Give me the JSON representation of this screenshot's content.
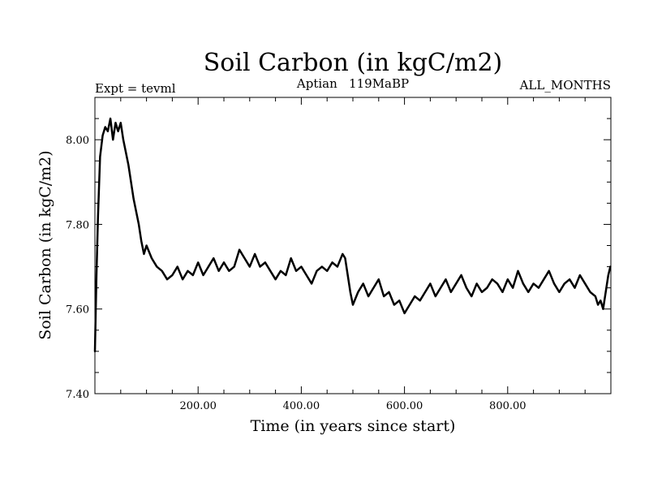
{
  "chart_data": {
    "type": "line",
    "title": "Soil Carbon (in kgC/m2)",
    "subtitle_left": "Expt = tevml",
    "subtitle_center": "Aptian   119MaBP",
    "subtitle_right": "ALL_MONTHS",
    "xlabel": "Time (in years since start)",
    "ylabel": "Soil Carbon (in kgC/m2)",
    "xlim": [
      0,
      1000
    ],
    "ylim": [
      7.4,
      8.1
    ],
    "xticks": [
      200,
      400,
      600,
      800
    ],
    "xtick_labels": [
      "200.00",
      "400.00",
      "600.00",
      "800.00"
    ],
    "yticks": [
      7.4,
      7.6,
      7.8,
      8.0
    ],
    "ytick_labels": [
      "7.40",
      "7.60",
      "7.80",
      "8.00"
    ],
    "grid": false,
    "line_color": "#000000",
    "series": [
      {
        "x": [
          0,
          3,
          6,
          10,
          15,
          20,
          25,
          30,
          35,
          40,
          45,
          50,
          55,
          60,
          65,
          70,
          75,
          80,
          85,
          90,
          95,
          100,
          110,
          120,
          130,
          140,
          150,
          160,
          170,
          180,
          190,
          200,
          210,
          220,
          230,
          240,
          250,
          260,
          270,
          280,
          290,
          300,
          310,
          320,
          330,
          340,
          350,
          360,
          370,
          380,
          390,
          400,
          410,
          420,
          430,
          440,
          450,
          460,
          470,
          480,
          485,
          490,
          495,
          500,
          510,
          520,
          530,
          540,
          550,
          560,
          570,
          580,
          590,
          600,
          610,
          620,
          630,
          640,
          650,
          660,
          670,
          680,
          690,
          700,
          710,
          720,
          730,
          740,
          750,
          760,
          770,
          780,
          790,
          800,
          810,
          820,
          830,
          840,
          850,
          860,
          870,
          880,
          890,
          900,
          910,
          920,
          930,
          940,
          950,
          960,
          970,
          975,
          980,
          985,
          990,
          995,
          999
        ],
        "y": [
          7.5,
          7.68,
          7.82,
          7.96,
          8.01,
          8.03,
          8.02,
          8.05,
          8.0,
          8.04,
          8.02,
          8.04,
          8.0,
          7.97,
          7.94,
          7.9,
          7.86,
          7.83,
          7.8,
          7.76,
          7.73,
          7.75,
          7.72,
          7.7,
          7.69,
          7.67,
          7.68,
          7.7,
          7.67,
          7.69,
          7.68,
          7.71,
          7.68,
          7.7,
          7.72,
          7.69,
          7.71,
          7.69,
          7.7,
          7.74,
          7.72,
          7.7,
          7.73,
          7.7,
          7.71,
          7.69,
          7.67,
          7.69,
          7.68,
          7.72,
          7.69,
          7.7,
          7.68,
          7.66,
          7.69,
          7.7,
          7.69,
          7.71,
          7.7,
          7.73,
          7.72,
          7.68,
          7.64,
          7.61,
          7.64,
          7.66,
          7.63,
          7.65,
          7.67,
          7.63,
          7.64,
          7.61,
          7.62,
          7.59,
          7.61,
          7.63,
          7.62,
          7.64,
          7.66,
          7.63,
          7.65,
          7.67,
          7.64,
          7.66,
          7.68,
          7.65,
          7.63,
          7.66,
          7.64,
          7.65,
          7.67,
          7.66,
          7.64,
          7.67,
          7.65,
          7.69,
          7.66,
          7.64,
          7.66,
          7.65,
          7.67,
          7.69,
          7.66,
          7.64,
          7.66,
          7.67,
          7.65,
          7.68,
          7.66,
          7.64,
          7.63,
          7.61,
          7.62,
          7.6,
          7.64,
          7.68,
          7.7
        ]
      }
    ]
  }
}
